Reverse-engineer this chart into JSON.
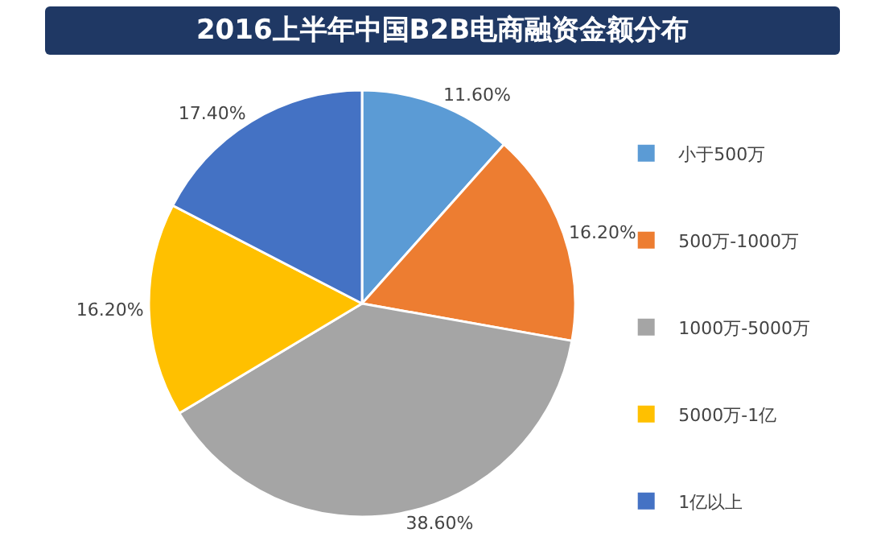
{
  "chart_data": {
    "type": "pie",
    "title": "2016上半年中国B2B电商融资金额分布",
    "categories": [
      "小于500万",
      "500万-1000万",
      "1000万-5000万",
      "5000万-1亿",
      "1亿以上"
    ],
    "values": [
      11.6,
      16.2,
      38.6,
      16.2,
      17.4
    ],
    "value_labels": [
      "11.60%",
      "16.20%",
      "38.60%",
      "16.20%",
      "17.40%"
    ],
    "colors": [
      "#5b9bd5",
      "#ed7d31",
      "#a5a5a5",
      "#ffc000",
      "#4472c4"
    ],
    "legend": "right"
  }
}
